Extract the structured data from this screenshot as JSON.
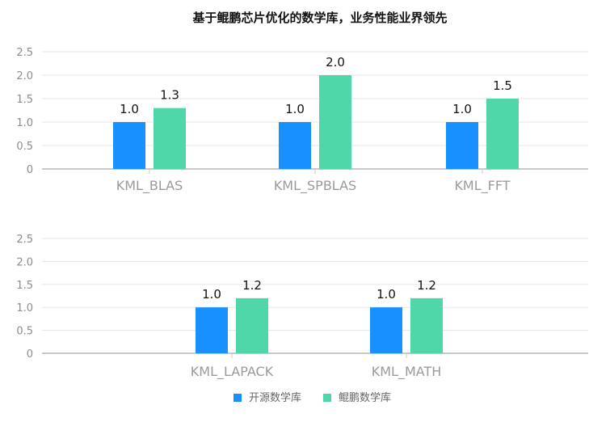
{
  "title": "基于鲲鹏芯片优化的数学库，业务性能业界领先",
  "colors": {
    "open_source": "#1890ff",
    "kunpeng": "#4fd6a9",
    "axis": "#c8c8c8",
    "grid": "#e6e6e6",
    "tick_text": "#8c8c8c",
    "category_text": "#9a9a9a",
    "value_text": "#111111",
    "title_text": "#111111",
    "legend_text": "#666666"
  },
  "legend": [
    {
      "name": "开源数学库",
      "color": "#1890ff"
    },
    {
      "name": "鲲鹏数学库",
      "color": "#4fd6a9"
    }
  ],
  "chart_data": [
    {
      "type": "bar",
      "categories": [
        "KML_BLAS",
        "KML_SPBLAS",
        "KML_FFT"
      ],
      "series": [
        {
          "name": "开源数学库",
          "values": [
            1.0,
            1.0,
            1.0
          ],
          "labels": [
            "1.0",
            "1.0",
            "1.0"
          ]
        },
        {
          "name": "鲲鹏数学库",
          "values": [
            1.3,
            2.0,
            1.5
          ],
          "labels": [
            "1.3",
            "2.0",
            "1.5"
          ]
        }
      ],
      "yticks": [
        "0",
        "0.5",
        "1.0",
        "1.5",
        "2.0",
        "2.5"
      ],
      "ylim": [
        0,
        2.5
      ],
      "grid": true
    },
    {
      "type": "bar",
      "categories": [
        "KML_LAPACK",
        "KML_MATH"
      ],
      "series": [
        {
          "name": "开源数学库",
          "values": [
            1.0,
            1.0
          ],
          "labels": [
            "1.0",
            "1.0"
          ]
        },
        {
          "name": "鲲鹏数学库",
          "values": [
            1.2,
            1.2
          ],
          "labels": [
            "1.2",
            "1.2"
          ]
        }
      ],
      "yticks": [
        "0",
        "0.5",
        "1.0",
        "1.5",
        "2.0",
        "2.5"
      ],
      "ylim": [
        0,
        2.5
      ],
      "grid": true
    }
  ]
}
